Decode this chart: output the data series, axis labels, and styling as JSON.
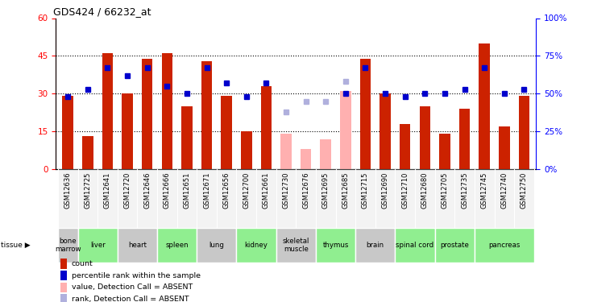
{
  "title": "GDS424 / 66232_at",
  "samples": [
    "GSM12636",
    "GSM12725",
    "GSM12641",
    "GSM12720",
    "GSM12646",
    "GSM12666",
    "GSM12651",
    "GSM12671",
    "GSM12656",
    "GSM12700",
    "GSM12661",
    "GSM12730",
    "GSM12676",
    "GSM12695",
    "GSM12685",
    "GSM12715",
    "GSM12690",
    "GSM12710",
    "GSM12680",
    "GSM12705",
    "GSM12735",
    "GSM12745",
    "GSM12740",
    "GSM12750"
  ],
  "red_values": [
    29,
    13,
    46,
    30,
    44,
    46,
    25,
    43,
    29,
    15,
    33,
    null,
    null,
    null,
    null,
    44,
    30,
    18,
    25,
    14,
    24,
    50,
    17,
    29
  ],
  "pink_values": [
    null,
    null,
    null,
    null,
    null,
    null,
    null,
    null,
    null,
    null,
    null,
    14,
    8,
    12,
    31,
    null,
    null,
    null,
    null,
    null,
    null,
    null,
    null,
    null
  ],
  "blue_pct": [
    48,
    53,
    67,
    62,
    67,
    55,
    50,
    67,
    57,
    48,
    57,
    null,
    null,
    null,
    50,
    67,
    50,
    48,
    50,
    50,
    53,
    67,
    50,
    53
  ],
  "lightblue_pct": [
    null,
    null,
    null,
    null,
    null,
    null,
    null,
    null,
    null,
    null,
    null,
    38,
    45,
    45,
    58,
    null,
    null,
    null,
    null,
    null,
    null,
    null,
    null,
    null
  ],
  "tissues": [
    {
      "label": "bone\nmarrow",
      "start": 0,
      "end": 1,
      "color": "#c8c8c8"
    },
    {
      "label": "liver",
      "start": 1,
      "end": 3,
      "color": "#90ee90"
    },
    {
      "label": "heart",
      "start": 3,
      "end": 5,
      "color": "#c8c8c8"
    },
    {
      "label": "spleen",
      "start": 5,
      "end": 7,
      "color": "#90ee90"
    },
    {
      "label": "lung",
      "start": 7,
      "end": 9,
      "color": "#c8c8c8"
    },
    {
      "label": "kidney",
      "start": 9,
      "end": 11,
      "color": "#90ee90"
    },
    {
      "label": "skeletal\nmuscle",
      "start": 11,
      "end": 13,
      "color": "#c8c8c8"
    },
    {
      "label": "thymus",
      "start": 13,
      "end": 15,
      "color": "#90ee90"
    },
    {
      "label": "brain",
      "start": 15,
      "end": 17,
      "color": "#c8c8c8"
    },
    {
      "label": "spinal cord",
      "start": 17,
      "end": 19,
      "color": "#90ee90"
    },
    {
      "label": "prostate",
      "start": 19,
      "end": 21,
      "color": "#90ee90"
    },
    {
      "label": "pancreas",
      "start": 21,
      "end": 24,
      "color": "#90ee90"
    }
  ],
  "ylim_left": [
    0,
    60
  ],
  "ylim_right": [
    0,
    100
  ],
  "yticks_left": [
    0,
    15,
    30,
    45,
    60
  ],
  "yticks_right": [
    0,
    25,
    50,
    75,
    100
  ],
  "ytick_labels_right": [
    "0%",
    "25%",
    "50%",
    "75%",
    "100%"
  ],
  "bar_color": "#cc2200",
  "pink_color": "#ffb0b0",
  "blue_color": "#0000cc",
  "lightblue_color": "#b0b0dd",
  "legend_items": [
    {
      "color": "#cc2200",
      "label": "count"
    },
    {
      "color": "#0000cc",
      "label": "percentile rank within the sample"
    },
    {
      "color": "#ffb0b0",
      "label": "value, Detection Call = ABSENT"
    },
    {
      "color": "#b0b0dd",
      "label": "rank, Detection Call = ABSENT"
    }
  ]
}
